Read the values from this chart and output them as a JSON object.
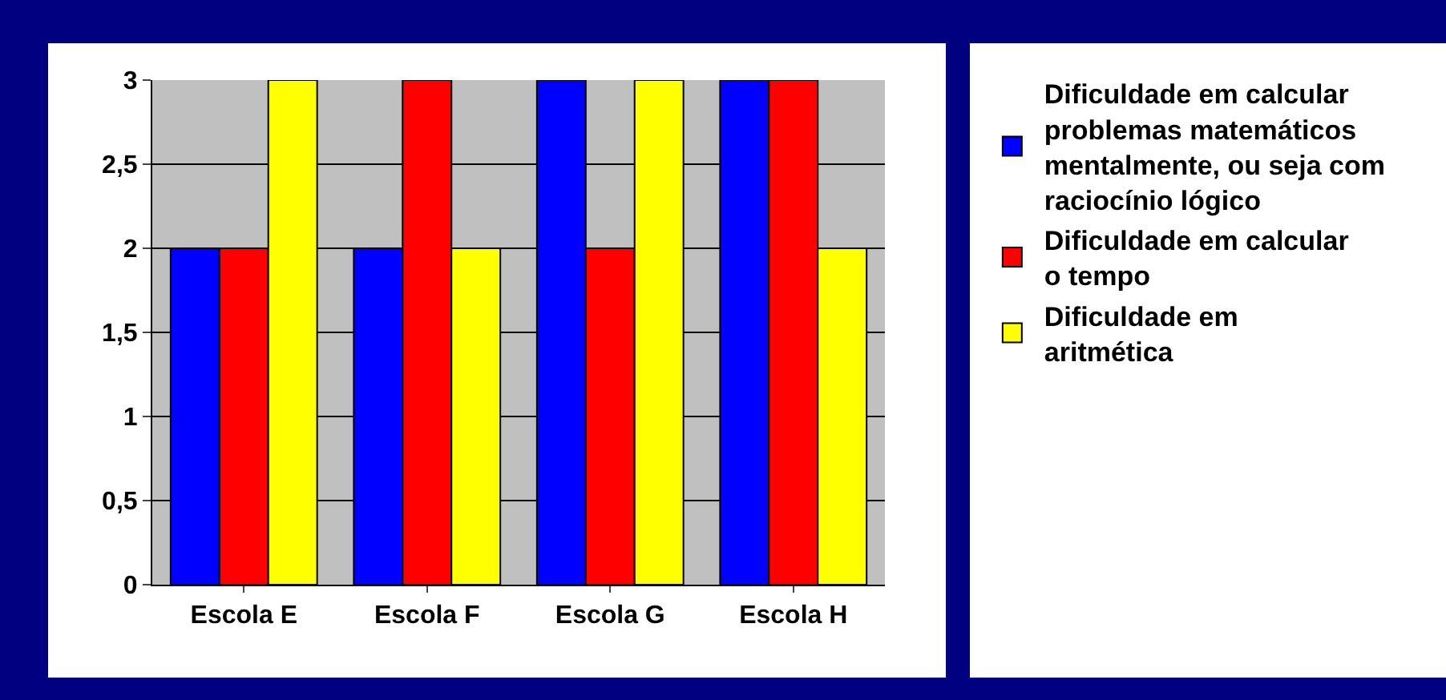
{
  "chart_data": {
    "type": "bar",
    "categories": [
      "Escola E",
      "Escola F",
      "Escola G",
      "Escola H"
    ],
    "series": [
      {
        "name": "Dificuldade em calcular problemas matemáticos mentalmente, ou seja com raciocínio lógico",
        "color": "#0000ff",
        "values": [
          2,
          2,
          3,
          3
        ]
      },
      {
        "name": "Dificuldade em calcular o tempo",
        "color": "#ff0000",
        "values": [
          2,
          3,
          2,
          3
        ]
      },
      {
        "name": "Dificuldade em aritmética",
        "color": "#ffff00",
        "values": [
          3,
          2,
          3,
          2
        ]
      }
    ],
    "ylim": [
      0,
      3
    ],
    "yticks": [
      0,
      {
        "value": 0.5,
        "label": "0,5"
      },
      1,
      {
        "value": 1.5,
        "label": "1,5"
      },
      2,
      {
        "value": 2.5,
        "label": "2,5"
      },
      3
    ],
    "grid": "y",
    "legend": "right"
  }
}
